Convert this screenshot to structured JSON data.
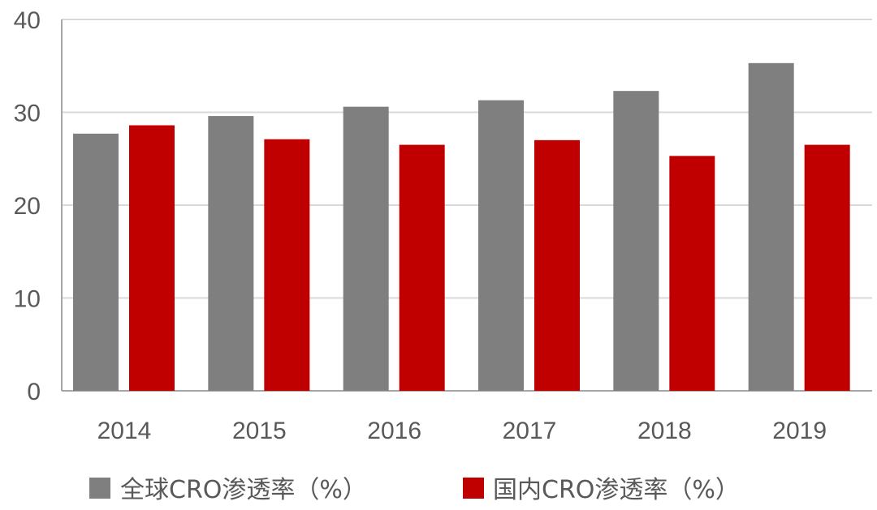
{
  "chart_data": {
    "type": "bar",
    "categories": [
      "2014",
      "2015",
      "2016",
      "2017",
      "2018",
      "2019"
    ],
    "series": [
      {
        "name": "全球CRO渗透率（%）",
        "color": "#7f7f7f",
        "values": [
          27.7,
          29.6,
          30.6,
          31.3,
          32.3,
          35.3
        ]
      },
      {
        "name": "国内CRO渗透率（%）",
        "color": "#c00000",
        "values": [
          28.6,
          27.1,
          26.5,
          27.0,
          25.3,
          26.5
        ]
      }
    ],
    "yticks": [
      "0",
      "10",
      "20",
      "30",
      "40"
    ],
    "ylim": [
      0,
      40
    ],
    "grid": true,
    "legend_position": "bottom"
  }
}
